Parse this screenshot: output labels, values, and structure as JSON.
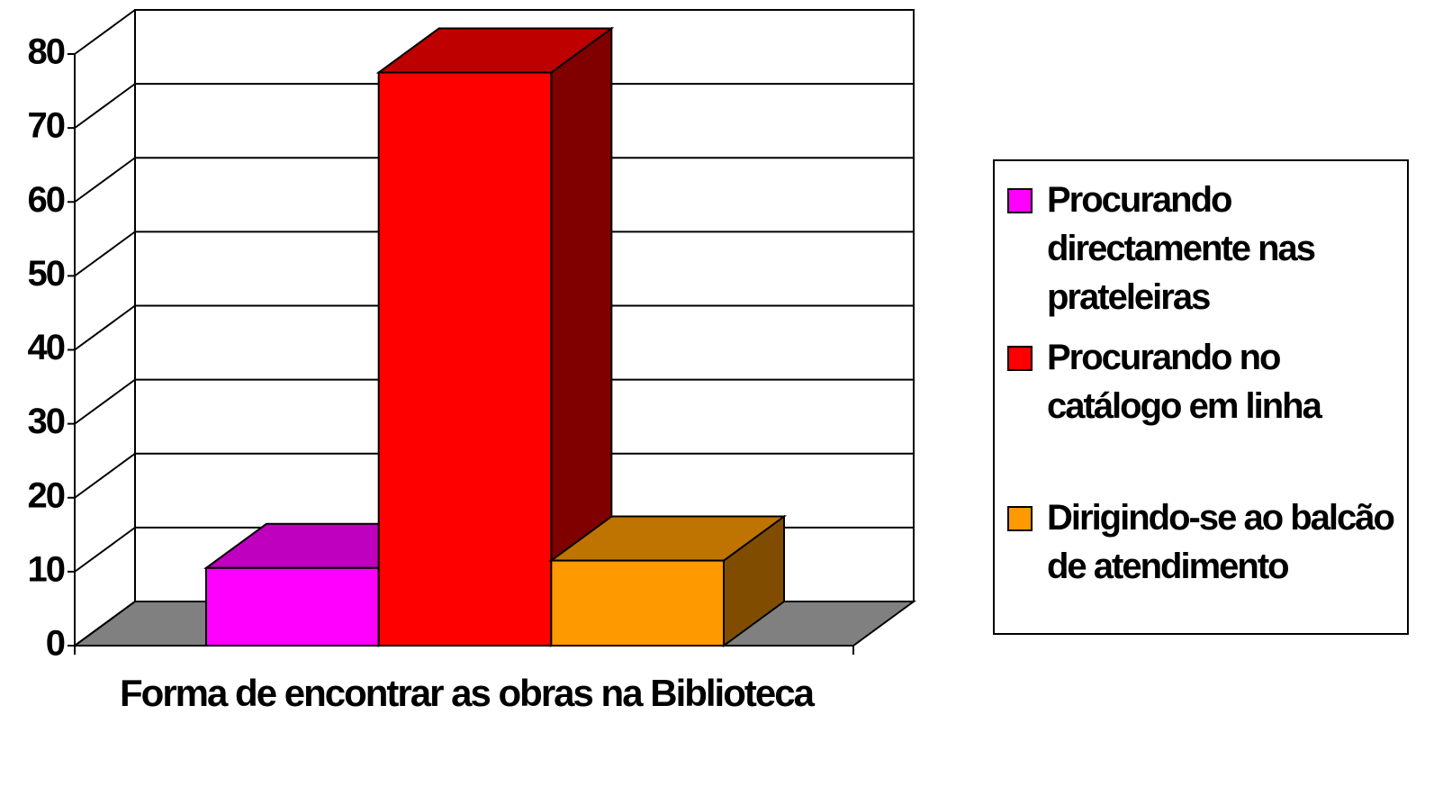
{
  "chart_data": {
    "type": "bar3d",
    "categories": [
      "Forma de encontrar as obras na Biblioteca"
    ],
    "series": [
      {
        "name": "Procurando directamente nas prateleiras",
        "color": "#ff00ff",
        "values": [
          10.5
        ]
      },
      {
        "name": "Procurando no catálogo em linha",
        "color": "#ff0000",
        "values": [
          77.5
        ]
      },
      {
        "name": "Dirigindo-se ao balcão de atendimento",
        "color": "#ff9900",
        "values": [
          11.5
        ]
      }
    ],
    "ylim": [
      0,
      80
    ],
    "yticks": [
      0,
      10,
      20,
      30,
      40,
      50,
      60,
      70,
      80
    ],
    "grid": true,
    "legend": "right"
  }
}
